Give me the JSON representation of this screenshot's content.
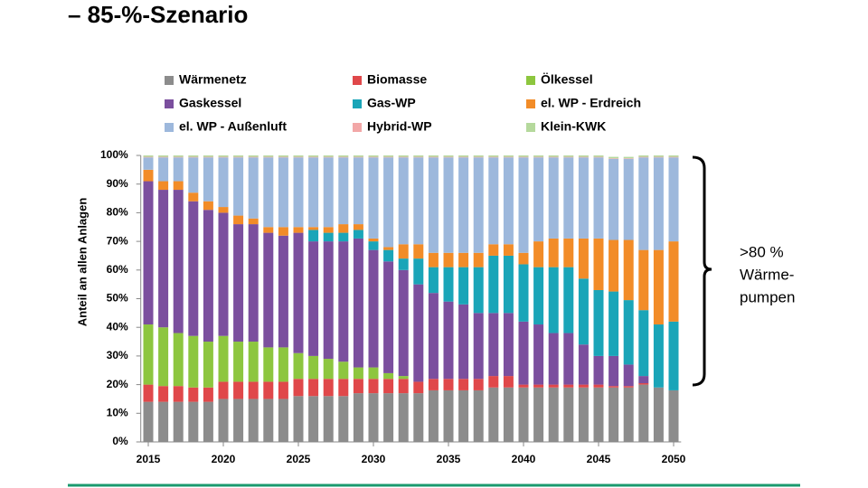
{
  "chart_data": {
    "type": "stacked-bar",
    "title": "– 85-%-Szenario",
    "y_label": "Anteil an allen Anlagen",
    "annotation": [
      ">80 %",
      "Wärme-",
      "pumpen"
    ],
    "x": [
      2015,
      2016,
      2017,
      2018,
      2019,
      2020,
      2021,
      2022,
      2023,
      2024,
      2025,
      2026,
      2027,
      2028,
      2029,
      2030,
      2031,
      2032,
      2033,
      2034,
      2035,
      2036,
      2037,
      2038,
      2039,
      2040,
      2041,
      2042,
      2043,
      2044,
      2045,
      2046,
      2047,
      2048,
      2049,
      2050
    ],
    "xlim": [
      2014.5,
      2050.5
    ],
    "xticks": [
      2015,
      2020,
      2025,
      2030,
      2035,
      2040,
      2045,
      2050
    ],
    "ylim": [
      0,
      100
    ],
    "yticks": [
      {
        "value": 0,
        "label": "0%"
      },
      {
        "value": 10,
        "label": "10%"
      },
      {
        "value": 20,
        "label": "20%"
      },
      {
        "value": 30,
        "label": "30%"
      },
      {
        "value": 40,
        "label": "40%"
      },
      {
        "value": 50,
        "label": "50%"
      },
      {
        "value": 60,
        "label": "60%"
      },
      {
        "value": 70,
        "label": "70%"
      },
      {
        "value": 80,
        "label": "80%"
      },
      {
        "value": 90,
        "label": "90%"
      },
      {
        "value": 100,
        "label": "100%"
      }
    ],
    "series": [
      {
        "name": "Wärmenetz",
        "color": "#8c8c8c",
        "values": [
          14,
          14,
          14,
          14,
          14,
          15,
          15,
          15,
          15,
          15,
          16,
          16,
          16,
          16,
          17,
          17,
          17,
          17,
          17,
          18,
          18,
          18,
          18,
          19,
          19,
          19,
          19,
          19,
          19,
          19,
          19,
          19,
          19,
          20,
          19,
          18
        ]
      },
      {
        "name": "Biomasse",
        "color": "#e0484a",
        "values": [
          6,
          5.5,
          5.5,
          5,
          5,
          6,
          6,
          6,
          6,
          6,
          6,
          6,
          6,
          6,
          5,
          5,
          5,
          5,
          4,
          4,
          4,
          4,
          4,
          4,
          4,
          1,
          1,
          1,
          1,
          1,
          1,
          0.5,
          0.5,
          0.5,
          0,
          0
        ]
      },
      {
        "name": "Ölkessel",
        "color": "#8dc63f",
        "values": [
          21,
          20.5,
          18.5,
          18,
          16,
          16,
          14,
          14,
          12,
          12,
          9,
          8,
          7,
          6,
          4,
          4,
          2,
          1,
          0,
          0,
          0,
          0,
          0,
          0,
          0,
          0,
          0,
          0,
          0,
          0,
          0,
          0,
          0,
          0,
          0,
          0
        ]
      },
      {
        "name": "Gaskessel",
        "color": "#7b4f9e",
        "values": [
          50,
          48,
          50,
          47,
          46,
          43,
          41,
          41,
          40,
          39,
          42,
          40,
          41,
          42,
          45,
          41,
          39,
          37,
          34,
          30,
          27,
          26,
          23,
          22,
          22,
          22,
          21,
          18,
          18,
          14,
          10,
          10.5,
          7.5,
          2.5,
          0,
          0
        ]
      },
      {
        "name": "Gas-WP",
        "color": "#1aa5b8",
        "values": [
          0,
          0,
          0,
          0,
          0,
          0,
          0,
          0,
          0,
          0,
          0,
          4,
          3,
          3,
          3,
          3,
          4,
          4,
          9,
          9,
          12,
          13,
          16,
          20,
          20,
          20,
          20,
          23,
          23,
          23,
          23,
          22.5,
          22.5,
          23,
          22,
          24
        ]
      },
      {
        "name": "el. WP - Erdreich",
        "color": "#f28c28",
        "values": [
          4,
          3,
          3,
          3,
          3,
          2,
          3,
          2,
          2,
          3,
          2,
          1,
          2,
          3,
          2,
          1,
          1,
          5,
          5,
          5,
          5,
          5,
          5,
          4,
          4,
          4,
          9,
          10,
          10,
          14,
          18,
          18,
          21,
          21,
          26,
          28
        ]
      },
      {
        "name": "el. WP - Außenluft",
        "color": "#9db8dc",
        "values": [
          4.3,
          8.3,
          8.3,
          12.3,
          15.3,
          17.3,
          20.3,
          21.3,
          24.3,
          24.3,
          24.3,
          24.3,
          24.3,
          23.3,
          23.3,
          28.3,
          31.3,
          30.3,
          30.3,
          33.3,
          33.3,
          33.3,
          33.3,
          30.3,
          30.3,
          33.3,
          29.3,
          28.3,
          28.3,
          28.3,
          28.3,
          28.3,
          28.3,
          32.3,
          32.3,
          29.3
        ]
      },
      {
        "name": "Hybrid-WP",
        "color": "#f2a7a7",
        "values": [
          0.2,
          0.2,
          0.2,
          0.2,
          0.2,
          0.2,
          0.2,
          0.2,
          0.2,
          0.2,
          0.2,
          0.2,
          0.2,
          0.2,
          0.2,
          0.2,
          0.2,
          0.2,
          0.2,
          0.2,
          0.2,
          0.2,
          0.2,
          0.2,
          0.2,
          0.2,
          0.2,
          0.2,
          0.2,
          0.2,
          0.2,
          0.2,
          0.2,
          0.2,
          0.2,
          0.2
        ]
      },
      {
        "name": "Klein-KWK",
        "color": "#b5d99c",
        "values": [
          0.5,
          0.5,
          0.5,
          0.5,
          0.5,
          0.5,
          0.5,
          0.5,
          0.5,
          0.5,
          0.5,
          0.5,
          0.5,
          0.5,
          0.5,
          0.5,
          0.5,
          0.5,
          0.5,
          0.5,
          0.5,
          0.5,
          0.5,
          0.5,
          0.5,
          0.5,
          0.5,
          0.5,
          0.5,
          0.5,
          0.5,
          0.5,
          0.5,
          0.5,
          0.5,
          0.5
        ]
      }
    ]
  }
}
